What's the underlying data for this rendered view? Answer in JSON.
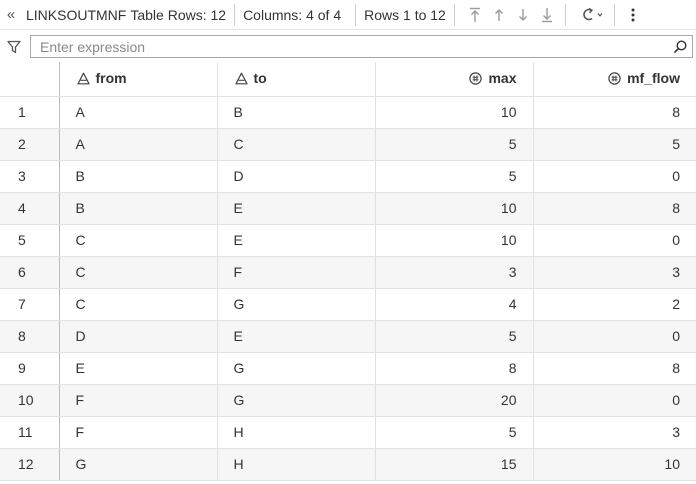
{
  "toolbar": {
    "collapse_icon": "double-chevron-left-icon",
    "table_name": "LINKSOUTMNF",
    "rows_label": "Table Rows: 12",
    "columns_label": "Columns: 4 of 4",
    "range_label": "Rows 1 to 12",
    "nav_icons": [
      "first-page-icon",
      "previous-page-icon",
      "next-page-icon",
      "last-page-icon"
    ],
    "refresh_icon": "refresh-icon",
    "more_icon": "more-vertical-icon"
  },
  "filter": {
    "icon": "funnel-icon",
    "placeholder": "Enter expression",
    "value": "",
    "search_icon": "search-icon"
  },
  "table": {
    "columns": [
      {
        "label": "from",
        "type": "character",
        "icon": "character-column-icon"
      },
      {
        "label": "to",
        "type": "character",
        "icon": "character-column-icon"
      },
      {
        "label": "max",
        "type": "numeric",
        "icon": "numeric-column-icon"
      },
      {
        "label": "mf_flow",
        "type": "numeric",
        "icon": "numeric-column-icon"
      }
    ],
    "rows": [
      {
        "idx": "1",
        "from": "A",
        "to": "B",
        "max": "10",
        "mf_flow": "8"
      },
      {
        "idx": "2",
        "from": "A",
        "to": "C",
        "max": "5",
        "mf_flow": "5"
      },
      {
        "idx": "3",
        "from": "B",
        "to": "D",
        "max": "5",
        "mf_flow": "0"
      },
      {
        "idx": "4",
        "from": "B",
        "to": "E",
        "max": "10",
        "mf_flow": "8"
      },
      {
        "idx": "5",
        "from": "C",
        "to": "E",
        "max": "10",
        "mf_flow": "0"
      },
      {
        "idx": "6",
        "from": "C",
        "to": "F",
        "max": "3",
        "mf_flow": "3"
      },
      {
        "idx": "7",
        "from": "C",
        "to": "G",
        "max": "4",
        "mf_flow": "2"
      },
      {
        "idx": "8",
        "from": "D",
        "to": "E",
        "max": "5",
        "mf_flow": "0"
      },
      {
        "idx": "9",
        "from": "E",
        "to": "G",
        "max": "8",
        "mf_flow": "8"
      },
      {
        "idx": "10",
        "from": "F",
        "to": "G",
        "max": "20",
        "mf_flow": "0"
      },
      {
        "idx": "11",
        "from": "F",
        "to": "H",
        "max": "5",
        "mf_flow": "3"
      },
      {
        "idx": "12",
        "from": "G",
        "to": "H",
        "max": "15",
        "mf_flow": "10"
      }
    ]
  },
  "colors": {
    "row_alt": "#f6f6f6",
    "grid_line": "#e2e2e2",
    "text": "#333333",
    "icon": "#555555",
    "nav_disabled": "#9a9a9a"
  }
}
